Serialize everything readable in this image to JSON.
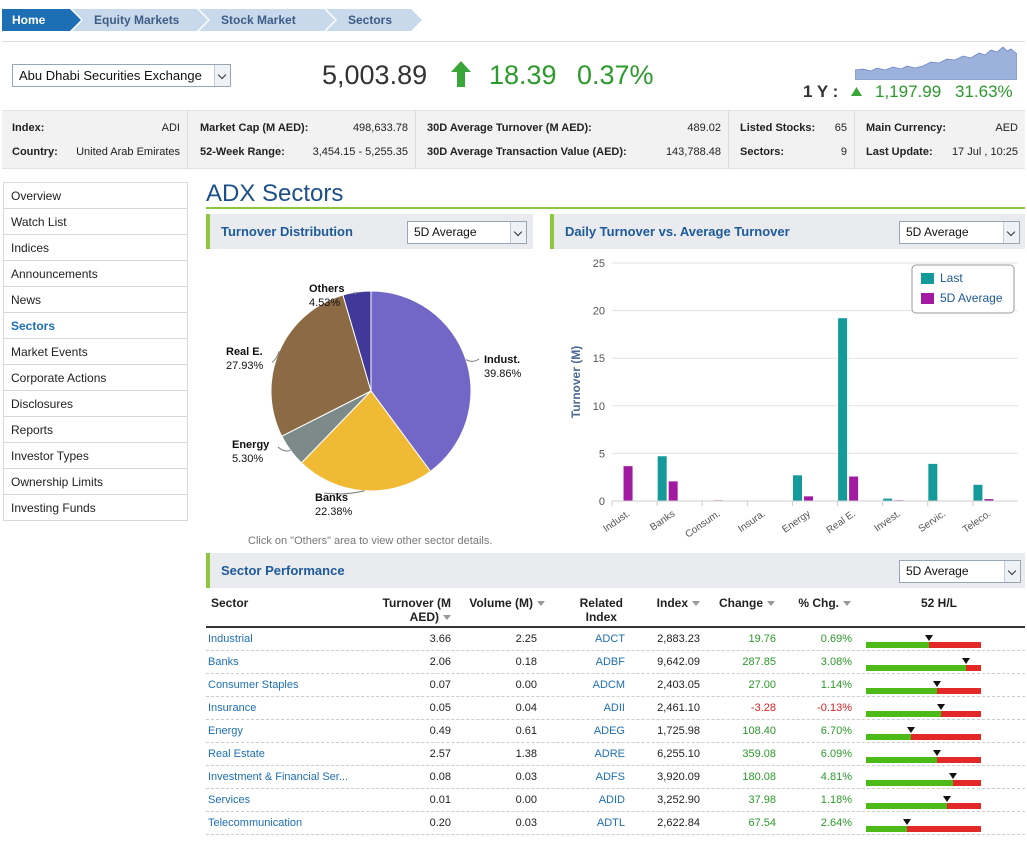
{
  "breadcrumb": [
    "Home",
    "Equity Markets",
    "Stock Market",
    "Sectors"
  ],
  "exchange": {
    "selected": "Abu Dhabi Securities Exchange"
  },
  "quote": {
    "price": "5,003.89",
    "change": "18.39",
    "change_pct": "0.37%",
    "one_year_label": "1 Y :",
    "one_year_change": "1,197.99",
    "one_year_pct": "31.63%"
  },
  "colors": {
    "positive": "#2c9a2c",
    "negative": "#e02020",
    "brand": "#1d6fb5",
    "accent": "#8dc63f"
  },
  "info": [
    {
      "label": "Index:",
      "value": "ADI"
    },
    {
      "label": "Country:",
      "value": "United Arab Emirates"
    },
    {
      "label": "Market Cap (M AED):",
      "value": "498,633.78"
    },
    {
      "label": "52-Week Range:",
      "value": "3,454.15 - 5,255.35"
    },
    {
      "label": "30D Average Turnover (M AED):",
      "value": "489.02"
    },
    {
      "label": "30D Average Transaction Value (AED):",
      "value": "143,788.48"
    },
    {
      "label": "Listed Stocks:",
      "value": "65"
    },
    {
      "label": "Sectors:",
      "value": "9"
    },
    {
      "label": "Main Currency:",
      "value": "AED"
    },
    {
      "label": "Last Update:",
      "value": "17 Jul , 10:25"
    }
  ],
  "nav": [
    "Overview",
    "Watch List",
    "Indices",
    "Announcements",
    "News",
    "Sectors",
    "Market Events",
    "Corporate Actions",
    "Disclosures",
    "Reports",
    "Investor Types",
    "Ownership Limits",
    "Investing Funds"
  ],
  "nav_active": "Sectors",
  "page_title": "ADX Sectors",
  "turnover_panel": {
    "title": "Turnover Distribution",
    "select": "5D Average",
    "note": "Click on \"Others\" area to view other sector details."
  },
  "daily_panel": {
    "title": "Daily Turnover vs. Average Turnover",
    "select": "5D Average"
  },
  "performance_panel": {
    "title": "Sector Performance",
    "select": "5D Average"
  },
  "chart_data": [
    {
      "type": "pie",
      "slices": [
        {
          "label": "Indust.",
          "value": 39.86,
          "pct_label": "39.86%",
          "color": "#7266c6"
        },
        {
          "label": "Banks",
          "value": 22.38,
          "pct_label": "22.38%",
          "color": "#f0ba35"
        },
        {
          "label": "Energy",
          "value": 5.3,
          "pct_label": "5.30%",
          "color": "#7c8a89"
        },
        {
          "label": "Real E.",
          "value": 27.93,
          "pct_label": "27.93%",
          "color": "#8b6a44"
        },
        {
          "label": "Others",
          "value": 4.53,
          "pct_label": "4.53%",
          "color": "#41399a"
        }
      ]
    },
    {
      "type": "bar",
      "categories": [
        "Indust.",
        "Banks",
        "Consum.",
        "Insura.",
        "Energy",
        "Real E.",
        "Invest.",
        "Servic.",
        "Teleco."
      ],
      "series": [
        {
          "name": "Last",
          "color": "#149a9a",
          "values": [
            0,
            4.7,
            0.05,
            0.05,
            2.7,
            19.2,
            0.25,
            3.9,
            1.7
          ]
        },
        {
          "name": "5D Average",
          "color": "#a21aa2",
          "values": [
            3.66,
            2.06,
            0.07,
            0.05,
            0.49,
            2.57,
            0.08,
            0.01,
            0.2
          ]
        }
      ],
      "ylabel": "Turnover (M)",
      "ylim": [
        0,
        25
      ],
      "yticks": [
        "0",
        "5",
        "10",
        "15",
        "20",
        "25"
      ],
      "legend": "top-right"
    }
  ],
  "table": {
    "headers": {
      "sector": "Sector",
      "turnover": "Turnover (M",
      "turnover2": "AED)",
      "volume": "Volume (M)",
      "related": "Related",
      "related2": "Index",
      "index": "Index",
      "change": "Change",
      "pct": "% Chg.",
      "hl": "52 H/L"
    },
    "rows": [
      {
        "name": "Industrial",
        "turnover": "3.66",
        "volume": "2.25",
        "related": "ADCT",
        "index": "2,883.23",
        "change": "19.76",
        "pct": "0.69%",
        "hl": 0.55
      },
      {
        "name": "Banks",
        "turnover": "2.06",
        "volume": "0.18",
        "related": "ADBF",
        "index": "9,642.09",
        "change": "287.85",
        "pct": "3.08%",
        "hl": 0.87
      },
      {
        "name": "Consumer Staples",
        "turnover": "0.07",
        "volume": "0.00",
        "related": "ADCM",
        "index": "2,403.05",
        "change": "27.00",
        "pct": "1.14%",
        "hl": 0.62
      },
      {
        "name": "Insurance",
        "turnover": "0.05",
        "volume": "0.04",
        "related": "ADII",
        "index": "2,461.10",
        "change": "-3.28",
        "pct": "-0.13%",
        "hl": 0.65
      },
      {
        "name": "Energy",
        "turnover": "0.49",
        "volume": "0.61",
        "related": "ADEG",
        "index": "1,725.98",
        "change": "108.40",
        "pct": "6.70%",
        "hl": 0.39
      },
      {
        "name": "Real Estate",
        "turnover": "2.57",
        "volume": "1.38",
        "related": "ADRE",
        "index": "6,255.10",
        "change": "359.08",
        "pct": "6.09%",
        "hl": 0.62
      },
      {
        "name": "Investment & Financial Ser...",
        "turnover": "0.08",
        "volume": "0.03",
        "related": "ADFS",
        "index": "3,920.09",
        "change": "180.08",
        "pct": "4.81%",
        "hl": 0.76
      },
      {
        "name": "Services",
        "turnover": "0.01",
        "volume": "0.00",
        "related": "ADID",
        "index": "3,252.90",
        "change": "37.98",
        "pct": "1.18%",
        "hl": 0.7
      },
      {
        "name": "Telecommunication",
        "turnover": "0.20",
        "volume": "0.03",
        "related": "ADTL",
        "index": "2,622.84",
        "change": "67.54",
        "pct": "2.64%",
        "hl": 0.36
      }
    ]
  }
}
